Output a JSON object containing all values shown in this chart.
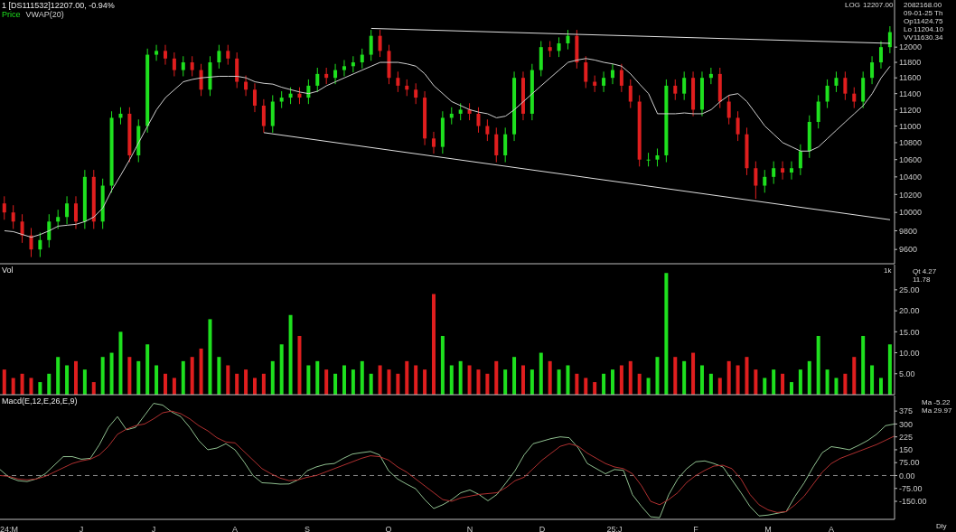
{
  "chart_data": [
    {
      "type": "candlestick",
      "title": "1 [DS111532]12207.00, -0.94%",
      "legend": "top left",
      "log": true,
      "tick_labels": "y",
      "ylim": [
        9450,
        12640
      ],
      "yticks": [
        9600,
        9800,
        10000,
        10200,
        10400,
        10600,
        10800,
        11000,
        11200,
        11400,
        11600,
        11800,
        12000
      ],
      "annotations": [
        "LOG",
        "2082168.00",
        "09-01-25 Th",
        "Op11424.75",
        "Lo 11204.10",
        "VV11630.34",
        "12207.00"
      ],
      "categories": [
        null,
        null,
        null,
        null,
        null,
        null,
        null,
        null,
        null,
        null,
        null,
        null,
        null,
        null,
        null,
        null,
        null,
        null,
        null,
        null,
        null,
        null,
        null,
        null,
        null,
        null,
        null,
        null,
        null,
        null,
        null,
        null,
        null,
        null,
        null,
        null,
        null,
        null,
        null,
        null,
        null,
        null,
        null,
        null,
        null,
        null,
        null,
        null,
        null,
        null,
        null,
        null,
        null,
        null,
        null,
        null,
        null,
        null,
        null,
        null,
        null,
        null,
        null,
        null,
        null,
        null,
        null,
        null,
        null,
        null,
        null,
        null,
        null,
        null,
        null,
        null,
        null,
        null,
        null,
        null,
        null,
        null,
        null,
        null,
        null,
        null,
        null,
        null,
        null,
        null,
        null,
        null,
        null,
        null,
        null,
        null,
        null,
        null,
        null,
        null
      ],
      "series": [
        {
          "name": "Price",
          "color": "#1ee01e",
          "colors": [
            "#e01e1e",
            "#e01e1e",
            "#e01e1e",
            "#e01e1e",
            "#1ee01e",
            "#1ee01e",
            "#1ee01e",
            "#1ee01e",
            "#e01e1e",
            "#1ee01e",
            "#e01e1e",
            "#1ee01e",
            "#1ee01e",
            "#1ee01e",
            "#e01e1e",
            "#1ee01e",
            "#1ee01e",
            "#1ee01e",
            "#e01e1e",
            "#e01e1e",
            "#1ee01e",
            "#e01e1e",
            "#e01e1e",
            "#1ee01e",
            "#1ee01e",
            "#e01e1e",
            "#e01e1e",
            "#e01e1e",
            "#e01e1e",
            "#e01e1e",
            "#1ee01e",
            "#1ee01e",
            "#1ee01e",
            "#e01e1e",
            "#1ee01e",
            "#1ee01e",
            "#e01e1e",
            "#1ee01e",
            "#1ee01e",
            "#1ee01e",
            "#1ee01e",
            "#1ee01e",
            "#e01e1e",
            "#e01e1e",
            "#e01e1e",
            "#e01e1e",
            "#e01e1e",
            "#e01e1e",
            "#e01e1e",
            "#1ee01e",
            "#1ee01e",
            "#1ee01e",
            "#e01e1e",
            "#e01e1e",
            "#e01e1e",
            "#e01e1e",
            "#1ee01e",
            "#1ee01e",
            "#e01e1e",
            "#1ee01e",
            "#1ee01e",
            "#e01e1e",
            "#1ee01e",
            "#1ee01e",
            "#e01e1e",
            "#e01e1e",
            "#e01e1e",
            "#1ee01e",
            "#1ee01e",
            "#e01e1e",
            "#e01e1e",
            "#e01e1e",
            "#1ee01e",
            "#1ee01e",
            "#1ee01e",
            "#e01e1e",
            "#1ee01e",
            "#e01e1e",
            "#1ee01e",
            "#1ee01e",
            "#e01e1e",
            "#e01e1e",
            "#e01e1e",
            "#e01e1e",
            "#e01e1e",
            "#1ee01e",
            "#1ee01e",
            "#e01e1e",
            "#1ee01e",
            "#1ee01e",
            "#1ee01e",
            "#1ee01e",
            "#1ee01e",
            "#1ee01e",
            "#e01e1e",
            "#e01e1e",
            "#1ee01e",
            "#1ee01e",
            "#1ee01e",
            "#1ee01e"
          ],
          "ohlc": [
            [
              10100,
              10180,
              9920,
              10000
            ],
            [
              10000,
              10080,
              9820,
              9900
            ],
            [
              9900,
              9980,
              9670,
              9750
            ],
            [
              9750,
              9830,
              9520,
              9600
            ],
            [
              9600,
              9780,
              9520,
              9700
            ],
            [
              9700,
              9980,
              9620,
              9900
            ],
            [
              9900,
              10030,
              9820,
              9950
            ],
            [
              9950,
              10180,
              9870,
              10100
            ],
            [
              10100,
              10180,
              9820,
              9900
            ],
            [
              9900,
              10480,
              9820,
              10400
            ],
            [
              10400,
              10480,
              9820,
              9900
            ],
            [
              9900,
              10380,
              9820,
              10300
            ],
            [
              10300,
              11180,
              10220,
              11100
            ],
            [
              11100,
              11230,
              11020,
              11150
            ],
            [
              11150,
              11230,
              10570,
              10650
            ],
            [
              10650,
              11080,
              10570,
              11000
            ],
            [
              11000,
              11980,
              10920,
              11900
            ],
            [
              11900,
              12030,
              11820,
              11950
            ],
            [
              11950,
              12030,
              11770,
              11850
            ],
            [
              11850,
              11930,
              11620,
              11700
            ],
            [
              11700,
              11880,
              11620,
              11800
            ],
            [
              11800,
              11880,
              11620,
              11700
            ],
            [
              11700,
              11780,
              11370,
              11450
            ],
            [
              11450,
              11880,
              11370,
              11800
            ],
            [
              11800,
              12030,
              11720,
              11950
            ],
            [
              11950,
              12030,
              11770,
              11850
            ],
            [
              11850,
              11930,
              11470,
              11550
            ],
            [
              11550,
              11630,
              11370,
              11450
            ],
            [
              11450,
              11530,
              11170,
              11250
            ],
            [
              11250,
              11330,
              10920,
              11000
            ],
            [
              11000,
              11380,
              10920,
              11300
            ],
            [
              11300,
              11430,
              11220,
              11350
            ],
            [
              11350,
              11480,
              11270,
              11400
            ],
            [
              11400,
              11480,
              11270,
              11350
            ],
            [
              11350,
              11580,
              11270,
              11500
            ],
            [
              11500,
              11730,
              11420,
              11650
            ],
            [
              11650,
              11730,
              11520,
              11600
            ],
            [
              11600,
              11780,
              11520,
              11700
            ],
            [
              11700,
              11830,
              11620,
              11750
            ],
            [
              11750,
              11880,
              11670,
              11800
            ],
            [
              11800,
              11980,
              11720,
              11900
            ],
            [
              11900,
              12230,
              11820,
              12150
            ],
            [
              12150,
              12230,
              11870,
              11950
            ],
            [
              11950,
              12030,
              11520,
              11600
            ],
            [
              11600,
              11680,
              11420,
              11500
            ],
            [
              11500,
              11580,
              11370,
              11450
            ],
            [
              11450,
              11530,
              11270,
              11350
            ],
            [
              11350,
              11430,
              10770,
              10850
            ],
            [
              10850,
              10930,
              10670,
              10750
            ],
            [
              10750,
              11180,
              10670,
              11100
            ],
            [
              11100,
              11230,
              11020,
              11150
            ],
            [
              11150,
              11280,
              11070,
              11200
            ],
            [
              11200,
              11280,
              11070,
              11150
            ],
            [
              11150,
              11230,
              10920,
              11000
            ],
            [
              11000,
              11080,
              10820,
              10900
            ],
            [
              10900,
              10980,
              10570,
              10650
            ],
            [
              10650,
              10980,
              10570,
              10900
            ],
            [
              10900,
              11680,
              10820,
              11600
            ],
            [
              11600,
              11680,
              11070,
              11150
            ],
            [
              11150,
              11780,
              11070,
              11700
            ],
            [
              11700,
              12080,
              11620,
              12000
            ],
            [
              12000,
              12080,
              11870,
              11950
            ],
            [
              11950,
              12130,
              11870,
              12050
            ],
            [
              12050,
              12230,
              11970,
              12150
            ],
            [
              12150,
              12230,
              11720,
              11800
            ],
            [
              11800,
              11880,
              11470,
              11550
            ],
            [
              11550,
              11630,
              11420,
              11500
            ],
            [
              11500,
              11680,
              11420,
              11600
            ],
            [
              11600,
              11780,
              11520,
              11700
            ],
            [
              11700,
              11780,
              11420,
              11500
            ],
            [
              11500,
              11580,
              11220,
              11300
            ],
            [
              11300,
              11380,
              10520,
              10600
            ],
            [
              10600,
              10680,
              10520,
              10600
            ],
            [
              10600,
              10730,
              10520,
              10650
            ],
            [
              10650,
              11580,
              10570,
              11500
            ],
            [
              11500,
              11580,
              11320,
              11400
            ],
            [
              11400,
              11680,
              11320,
              11600
            ],
            [
              11600,
              11680,
              11120,
              11200
            ],
            [
              11200,
              11680,
              11120,
              11600
            ],
            [
              11600,
              11730,
              11520,
              11650
            ],
            [
              11650,
              11730,
              11220,
              11300
            ],
            [
              11300,
              11380,
              11020,
              11100
            ],
            [
              11100,
              11180,
              10820,
              10900
            ],
            [
              10900,
              10980,
              10420,
              10500
            ],
            [
              10500,
              10580,
              10150,
              10300
            ],
            [
              10300,
              10480,
              10220,
              10400
            ],
            [
              10400,
              10580,
              10320,
              10500
            ],
            [
              10500,
              10580,
              10370,
              10450
            ],
            [
              10450,
              10580,
              10370,
              10500
            ],
            [
              10500,
              10780,
              10420,
              10700
            ],
            [
              10700,
              11130,
              10620,
              11050
            ],
            [
              11050,
              11380,
              10970,
              11300
            ],
            [
              11300,
              11580,
              11220,
              11500
            ],
            [
              11500,
              11680,
              11420,
              11600
            ],
            [
              11600,
              11680,
              11320,
              11400
            ],
            [
              11400,
              11480,
              11220,
              11300
            ],
            [
              11300,
              11680,
              11220,
              11600
            ],
            [
              11600,
              11880,
              11520,
              11800
            ],
            [
              11800,
              12080,
              11720,
              12000
            ],
            [
              12000,
              12280,
              11920,
              12200
            ]
          ]
        },
        {
          "name": "VWAP(20)",
          "type": "line",
          "color": "#d0d0d0",
          "values": [
            9800,
            9790,
            9760,
            9730,
            9760,
            9800,
            9850,
            9860,
            9870,
            9900,
            9950,
            10050,
            10250,
            10420,
            10600,
            10800,
            11000,
            11200,
            11350,
            11450,
            11550,
            11580,
            11600,
            11610,
            11620,
            11620,
            11620,
            11600,
            11550,
            11530,
            11520,
            11480,
            11450,
            11420,
            11400,
            11430,
            11500,
            11550,
            11600,
            11650,
            11700,
            11750,
            11800,
            11800,
            11800,
            11780,
            11750,
            11650,
            11500,
            11400,
            11300,
            11250,
            11200,
            11170,
            11150,
            11100,
            11120,
            11200,
            11300,
            11400,
            11500,
            11600,
            11700,
            11800,
            11830,
            11850,
            11830,
            11800,
            11780,
            11750,
            11650,
            11520,
            11400,
            11150,
            11150,
            11150,
            11160,
            11150,
            11150,
            11200,
            11300,
            11380,
            11400,
            11300,
            11150,
            11000,
            10900,
            10800,
            10750,
            10700,
            10700,
            10750,
            10850,
            10950,
            11050,
            11150,
            11250,
            11400,
            11600,
            11750
          ]
        },
        {
          "type": "line",
          "color": "#e0e0e0",
          "values": [
            null,
            null,
            null,
            null,
            null,
            null,
            null,
            null,
            null,
            null,
            null,
            null,
            null,
            null,
            null,
            null,
            null,
            null,
            null,
            null,
            null,
            null,
            null,
            null,
            null,
            null,
            null,
            null,
            null,
            null,
            null,
            null,
            null,
            null,
            null,
            null,
            null,
            null,
            null,
            null,
            null,
            12250,
            null,
            null,
            null,
            null,
            null,
            null,
            null,
            null,
            null,
            null,
            null,
            null,
            null,
            null,
            null,
            null,
            null,
            null,
            null,
            null,
            null,
            null,
            null,
            null,
            null,
            null,
            null,
            null,
            null,
            null,
            null,
            null,
            null,
            null,
            null,
            null,
            null,
            null,
            null,
            null,
            null,
            null,
            null,
            null,
            null,
            null,
            null,
            null,
            null,
            null,
            null,
            null,
            null,
            null,
            null,
            null,
            null,
            12050
          ]
        },
        {
          "type": "line",
          "color": "#e0e0e0",
          "values": [
            null,
            null,
            null,
            null,
            null,
            null,
            null,
            null,
            null,
            null,
            null,
            null,
            null,
            null,
            null,
            null,
            null,
            null,
            null,
            null,
            null,
            null,
            null,
            null,
            null,
            null,
            null,
            null,
            null,
            10920,
            null,
            null,
            null,
            null,
            null,
            null,
            null,
            null,
            null,
            null,
            null,
            null,
            null,
            null,
            null,
            null,
            null,
            null,
            null,
            null,
            null,
            null,
            null,
            null,
            null,
            null,
            null,
            null,
            null,
            null,
            null,
            null,
            null,
            null,
            null,
            null,
            null,
            null,
            null,
            null,
            null,
            null,
            null,
            null,
            null,
            null,
            null,
            null,
            null,
            null,
            null,
            null,
            null,
            null,
            null,
            null,
            null,
            null,
            null,
            null,
            null,
            null,
            null,
            null,
            null,
            null,
            null,
            null,
            null,
            9920
          ]
        }
      ]
    },
    {
      "type": "bar",
      "title": "Vol",
      "tick_labels": "y",
      "ylim": [
        0,
        31
      ],
      "yticks": [
        {
          "value": 5,
          "label": "5.00"
        },
        {
          "value": 10,
          "label": "10.00"
        },
        {
          "value": 15,
          "label": "15.00"
        },
        {
          "value": 20,
          "label": "20.00"
        },
        {
          "value": 25,
          "label": "25.00"
        }
      ],
      "annotations": [
        "1k",
        "Qt 4.27",
        "11.78"
      ],
      "categories": [
        null,
        null,
        null,
        null,
        null,
        null,
        null,
        null,
        null,
        null,
        null,
        null,
        null,
        null,
        null,
        null,
        null,
        null,
        null,
        null,
        null,
        null,
        null,
        null,
        null,
        null,
        null,
        null,
        null,
        null,
        null,
        null,
        null,
        null,
        null,
        null,
        null,
        null,
        null,
        null,
        null,
        null,
        null,
        null,
        null,
        null,
        null,
        null,
        null,
        null,
        null,
        null,
        null,
        null,
        null,
        null,
        null,
        null,
        null,
        null,
        null,
        null,
        null,
        null,
        null,
        null,
        null,
        null,
        null,
        null,
        null,
        null,
        null,
        null,
        null,
        null,
        null,
        null,
        null,
        null,
        null,
        null,
        null,
        null,
        null,
        null,
        null,
        null,
        null,
        null,
        null,
        null,
        null,
        null,
        null,
        null,
        null,
        null,
        null,
        null
      ],
      "values": [
        6,
        4,
        5,
        4,
        3,
        5,
        9,
        7,
        8,
        6,
        3,
        9,
        10,
        15,
        9,
        8,
        12,
        7,
        5,
        4,
        8,
        9,
        11,
        18,
        9,
        7,
        5,
        6,
        4,
        5,
        8,
        12,
        19,
        14,
        7,
        8,
        6,
        5,
        7,
        6,
        8,
        5,
        7,
        6,
        5,
        8,
        7,
        6,
        24,
        14,
        7,
        8,
        7,
        6,
        5,
        8,
        6,
        9,
        7,
        6,
        10,
        8,
        6,
        7,
        5,
        4,
        3,
        5,
        6,
        7,
        8,
        5,
        4,
        9,
        29,
        9,
        8,
        10,
        7,
        5,
        4,
        8,
        7,
        9,
        6,
        4,
        6,
        5,
        3,
        6,
        8,
        14,
        6,
        4,
        5,
        9,
        14,
        7,
        4,
        12
      ],
      "colors": [
        "#e01e1e",
        "#e01e1e",
        "#e01e1e",
        "#e01e1e",
        "#1ee01e",
        "#1ee01e",
        "#1ee01e",
        "#1ee01e",
        "#e01e1e",
        "#1ee01e",
        "#e01e1e",
        "#1ee01e",
        "#1ee01e",
        "#1ee01e",
        "#e01e1e",
        "#1ee01e",
        "#1ee01e",
        "#1ee01e",
        "#e01e1e",
        "#e01e1e",
        "#1ee01e",
        "#e01e1e",
        "#e01e1e",
        "#1ee01e",
        "#1ee01e",
        "#e01e1e",
        "#e01e1e",
        "#e01e1e",
        "#e01e1e",
        "#e01e1e",
        "#1ee01e",
        "#1ee01e",
        "#1ee01e",
        "#e01e1e",
        "#1ee01e",
        "#1ee01e",
        "#e01e1e",
        "#1ee01e",
        "#1ee01e",
        "#1ee01e",
        "#1ee01e",
        "#1ee01e",
        "#e01e1e",
        "#e01e1e",
        "#e01e1e",
        "#e01e1e",
        "#e01e1e",
        "#e01e1e",
        "#e01e1e",
        "#1ee01e",
        "#1ee01e",
        "#1ee01e",
        "#e01e1e",
        "#e01e1e",
        "#e01e1e",
        "#e01e1e",
        "#1ee01e",
        "#1ee01e",
        "#e01e1e",
        "#1ee01e",
        "#1ee01e",
        "#e01e1e",
        "#1ee01e",
        "#1ee01e",
        "#e01e1e",
        "#e01e1e",
        "#e01e1e",
        "#1ee01e",
        "#1ee01e",
        "#e01e1e",
        "#e01e1e",
        "#e01e1e",
        "#1ee01e",
        "#1ee01e",
        "#1ee01e",
        "#e01e1e",
        "#1ee01e",
        "#e01e1e",
        "#1ee01e",
        "#1ee01e",
        "#e01e1e",
        "#e01e1e",
        "#e01e1e",
        "#e01e1e",
        "#e01e1e",
        "#1ee01e",
        "#1ee01e",
        "#e01e1e",
        "#1ee01e",
        "#1ee01e",
        "#1ee01e",
        "#1ee01e",
        "#1ee01e",
        "#1ee01e",
        "#e01e1e",
        "#e01e1e",
        "#1ee01e",
        "#1ee01e",
        "#1ee01e",
        "#1ee01e"
      ]
    },
    {
      "type": "line",
      "title": "Macd(E,12,E,26,E,9)",
      "ylim": [
        -255,
        465
      ],
      "yticks": [
        {
          "value": -150,
          "label": "-150.00"
        },
        {
          "value": -75,
          "label": "-75.00"
        },
        {
          "value": 0,
          "label": "0.00"
        },
        {
          "value": 75,
          "label": "75.00"
        },
        150,
        225,
        300,
        375
      ],
      "ref_lines": [
        {
          "axis": "y",
          "value": 0,
          "color": "#8a8a8a",
          "line_style": "dashed"
        }
      ],
      "annotations": [
        "Ma -5.22",
        "Ma 29.97",
        "Dly"
      ],
      "categories": [
        null,
        "24:M",
        null,
        null,
        null,
        null,
        null,
        null,
        null,
        "J",
        null,
        null,
        null,
        null,
        null,
        null,
        null,
        "J",
        null,
        null,
        null,
        null,
        null,
        null,
        null,
        null,
        "A",
        null,
        null,
        null,
        null,
        null,
        null,
        null,
        "S",
        null,
        null,
        null,
        null,
        null,
        null,
        null,
        null,
        "O",
        null,
        null,
        null,
        null,
        null,
        null,
        null,
        null,
        "N",
        null,
        null,
        null,
        null,
        null,
        null,
        null,
        "D",
        null,
        null,
        null,
        null,
        null,
        null,
        null,
        "25:J",
        null,
        null,
        null,
        null,
        null,
        null,
        null,
        null,
        "F",
        null,
        null,
        null,
        null,
        null,
        null,
        null,
        "M",
        null,
        null,
        null,
        null,
        null,
        null,
        "A",
        null,
        null,
        null,
        null,
        null,
        null,
        null
      ],
      "series": [
        {
          "color": "#8fbf8f",
          "values": [
            35,
            -10,
            -30,
            -35,
            -20,
            10,
            60,
            110,
            110,
            95,
            100,
            180,
            280,
            343,
            266,
            280,
            350,
            420,
            410,
            370,
            343,
            280,
            203,
            150,
            160,
            185,
            150,
            80,
            0,
            -42,
            -45,
            -50,
            -49,
            -25,
            28,
            50,
            65,
            70,
            100,
            125,
            133,
            140,
            120,
            28,
            -20,
            -50,
            -77,
            -140,
            -192,
            -170,
            -140,
            -100,
            -84,
            -110,
            -147,
            -110,
            -42,
            28,
            120,
            185,
            200,
            215,
            225,
            220,
            160,
            70,
            40,
            10,
            35,
            30,
            -112,
            -180,
            -240,
            -245,
            -112,
            -20,
            40,
            80,
            85,
            70,
            50,
            -25,
            -100,
            -180,
            -235,
            -230,
            -220,
            -210,
            -120,
            -42,
            50,
            133,
            168,
            160,
            150,
            175,
            203,
            240,
            290,
            300
          ]
        },
        {
          "color": "#b03030",
          "values": [
            0,
            -5,
            -20,
            -25,
            -20,
            -5,
            20,
            45,
            70,
            85,
            95,
            120,
            170,
            240,
            270,
            290,
            300,
            330,
            365,
            375,
            360,
            330,
            290,
            260,
            220,
            195,
            190,
            140,
            90,
            40,
            10,
            -15,
            -30,
            -25,
            -10,
            0,
            20,
            40,
            60,
            80,
            100,
            115,
            110,
            90,
            50,
            20,
            -20,
            -60,
            -100,
            -140,
            -150,
            -130,
            -120,
            -110,
            -105,
            -100,
            -70,
            -30,
            -10,
            40,
            90,
            130,
            170,
            185,
            170,
            130,
            100,
            70,
            50,
            40,
            10,
            -60,
            -150,
            -170,
            -140,
            -100,
            -40,
            0,
            30,
            55,
            60,
            40,
            -20,
            -110,
            -170,
            -200,
            -215,
            -210,
            -170,
            -120,
            -50,
            20,
            70,
            100,
            120,
            140,
            160,
            180,
            205,
            230
          ]
        }
      ]
    }
  ]
}
